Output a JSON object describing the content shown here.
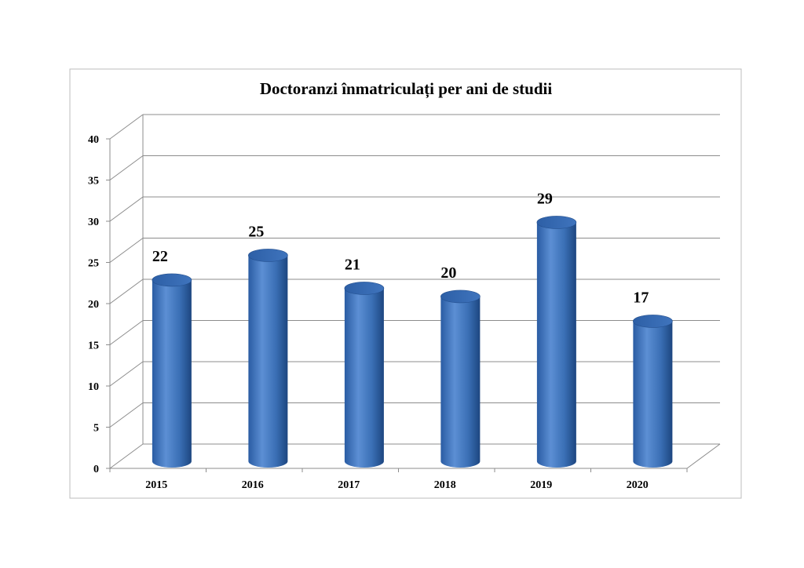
{
  "chart_data": {
    "type": "bar",
    "title": "Doctoranzi înmatriculați per ani de studii",
    "categories": [
      "2015",
      "2016",
      "2017",
      "2018",
      "2019",
      "2020"
    ],
    "values": [
      22,
      25,
      21,
      20,
      29,
      17
    ],
    "ylim": [
      0,
      40
    ],
    "yticks": [
      "0",
      "5",
      "10",
      "15",
      "20",
      "25",
      "30",
      "35",
      "40"
    ],
    "grid": true,
    "legend": "none",
    "style": "3d-cylinder",
    "bar_color": "#3a6fb5",
    "bar_dark_color": "#1f4a86",
    "bar_light_color": "#7aa3dc"
  }
}
